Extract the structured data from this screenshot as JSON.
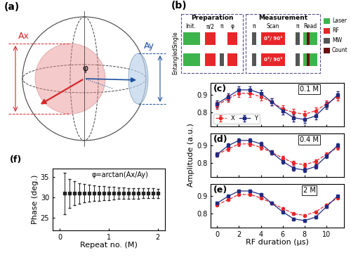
{
  "diagram_a": {
    "panel_label": "(a)",
    "x_amplitude": "Ax",
    "y_amplitude": "Ay",
    "angle": "φ"
  },
  "diagram_b": {
    "panel_label": "(b)",
    "sections": [
      "Preparation",
      "Measurement"
    ],
    "rows": [
      "Single",
      "Entangled"
    ],
    "pulse_labels": {
      "init": "Init.",
      "half": "π/2",
      "pi": "π",
      "phase": "φ",
      "scan": "Scan",
      "read": "Read"
    },
    "scan_label": "0°/ 90°",
    "legend": [
      {
        "name": "Laser",
        "color": "#3cb44b"
      },
      {
        "name": "RF",
        "color": "#e8262a"
      },
      {
        "name": "MW",
        "color": "#555555"
      },
      {
        "name": "Count",
        "color": "#6b0f0f"
      }
    ]
  },
  "chart_data": [
    {
      "type": "line",
      "panel_label": "(c)",
      "annotation": "0.1 M",
      "legend": "lower left",
      "tick_labels": "y",
      "x": [
        0,
        1,
        2,
        3,
        4,
        5,
        6,
        7,
        8,
        9,
        10,
        11
      ],
      "xlim": [
        -0.6,
        11.6
      ],
      "xticks": [
        0,
        2,
        4,
        6,
        8,
        10
      ],
      "ylim": [
        0.72,
        0.97
      ],
      "yticks": [
        0.8,
        0.9
      ],
      "series": [
        {
          "name": "X",
          "color": "#e8262a",
          "marker": "circle",
          "line_style": "dashed",
          "values": [
            0.84,
            0.88,
            0.91,
            0.91,
            0.89,
            0.86,
            0.82,
            0.8,
            0.79,
            0.81,
            0.85,
            0.89
          ],
          "errors": [
            0.02,
            0.02,
            0.02,
            0.02,
            0.02,
            0.02,
            0.02,
            0.02,
            0.02,
            0.02,
            0.02,
            0.02
          ]
        },
        {
          "name": "Y",
          "color": "#1f2a80",
          "marker": "square",
          "line_style": "solid",
          "values": [
            0.85,
            0.89,
            0.93,
            0.93,
            0.91,
            0.86,
            0.81,
            0.77,
            0.76,
            0.78,
            0.84,
            0.9
          ],
          "errors": [
            0.02,
            0.02,
            0.02,
            0.02,
            0.02,
            0.02,
            0.02,
            0.02,
            0.02,
            0.02,
            0.02,
            0.02
          ]
        }
      ]
    },
    {
      "type": "line",
      "panel_label": "(d)",
      "annotation": "0.4 M",
      "tick_labels": "y",
      "y_label": "Amplitude (a.u.)",
      "x": [
        0,
        1,
        2,
        3,
        4,
        5,
        6,
        7,
        8,
        9,
        10,
        11
      ],
      "xlim": [
        -0.6,
        11.6
      ],
      "xticks": [
        0,
        2,
        4,
        6,
        8,
        10
      ],
      "ylim": [
        0.72,
        0.97
      ],
      "yticks": [
        0.8,
        0.9
      ],
      "series": [
        {
          "name": "X",
          "color": "#e8262a",
          "marker": "circle",
          "line_style": "dashed",
          "values": [
            0.85,
            0.88,
            0.91,
            0.91,
            0.89,
            0.86,
            0.83,
            0.8,
            0.79,
            0.81,
            0.85,
            0.89
          ],
          "errors": [
            0.012,
            0.012,
            0.012,
            0.012,
            0.012,
            0.012,
            0.012,
            0.012,
            0.012,
            0.012,
            0.012,
            0.012
          ]
        },
        {
          "name": "Y",
          "color": "#1f2a80",
          "marker": "square",
          "line_style": "solid",
          "values": [
            0.85,
            0.9,
            0.93,
            0.93,
            0.91,
            0.86,
            0.81,
            0.77,
            0.76,
            0.78,
            0.84,
            0.9
          ],
          "errors": [
            0.012,
            0.012,
            0.012,
            0.012,
            0.012,
            0.012,
            0.012,
            0.012,
            0.012,
            0.012,
            0.012,
            0.012
          ]
        }
      ]
    },
    {
      "type": "line",
      "panel_label": "(e)",
      "annotation": "2 M",
      "x_label": "RF duration (μs)",
      "x": [
        0,
        1,
        2,
        3,
        4,
        5,
        6,
        7,
        8,
        9,
        10,
        11
      ],
      "xlim": [
        -0.6,
        11.6
      ],
      "xticks": [
        0,
        2,
        4,
        6,
        8,
        10
      ],
      "ylim": [
        0.72,
        0.97
      ],
      "yticks": [
        0.8,
        0.9
      ],
      "series": [
        {
          "name": "X",
          "color": "#e8262a",
          "marker": "circle",
          "line_style": "dashed",
          "values": [
            0.85,
            0.88,
            0.91,
            0.91,
            0.89,
            0.86,
            0.83,
            0.8,
            0.79,
            0.81,
            0.85,
            0.89
          ],
          "errors": [
            0.006,
            0.006,
            0.006,
            0.006,
            0.006,
            0.006,
            0.006,
            0.006,
            0.006,
            0.006,
            0.006,
            0.006
          ]
        },
        {
          "name": "Y",
          "color": "#1f2a80",
          "marker": "square",
          "line_style": "solid",
          "values": [
            0.86,
            0.9,
            0.93,
            0.93,
            0.91,
            0.86,
            0.81,
            0.77,
            0.76,
            0.78,
            0.84,
            0.9
          ],
          "errors": [
            0.006,
            0.006,
            0.006,
            0.006,
            0.006,
            0.006,
            0.006,
            0.006,
            0.006,
            0.006,
            0.006,
            0.006
          ]
        }
      ]
    },
    {
      "type": "scatter",
      "panel_label": "(f)",
      "annotation": "φ=arctan(Ax/Ay)",
      "x_label": "Repeat no. (M)",
      "y_label": "Phase (deg.)",
      "x": [
        0.1,
        0.2,
        0.3,
        0.4,
        0.5,
        0.6,
        0.7,
        0.8,
        0.9,
        1.0,
        1.1,
        1.2,
        1.3,
        1.4,
        1.5,
        1.6,
        1.7,
        1.8,
        1.9,
        2.0
      ],
      "xlim": [
        -0.15,
        2.15
      ],
      "xticks": [
        0,
        1,
        2
      ],
      "ylim": [
        22,
        37
      ],
      "yticks": [
        25,
        30,
        35
      ],
      "series": [
        {
          "name": "Phase",
          "color": "#222222",
          "marker": "square",
          "line_style": "none",
          "values": [
            31,
            31,
            31,
            31,
            31,
            31,
            31,
            31,
            31,
            31,
            31,
            31,
            31,
            31,
            31,
            31,
            31,
            31,
            31,
            31
          ],
          "errors": [
            5.0,
            3.5,
            2.9,
            2.5,
            2.2,
            2.0,
            1.9,
            1.8,
            1.7,
            1.6,
            1.5,
            1.4,
            1.4,
            1.3,
            1.3,
            1.25,
            1.2,
            1.2,
            1.15,
            1.1
          ]
        }
      ]
    }
  ]
}
